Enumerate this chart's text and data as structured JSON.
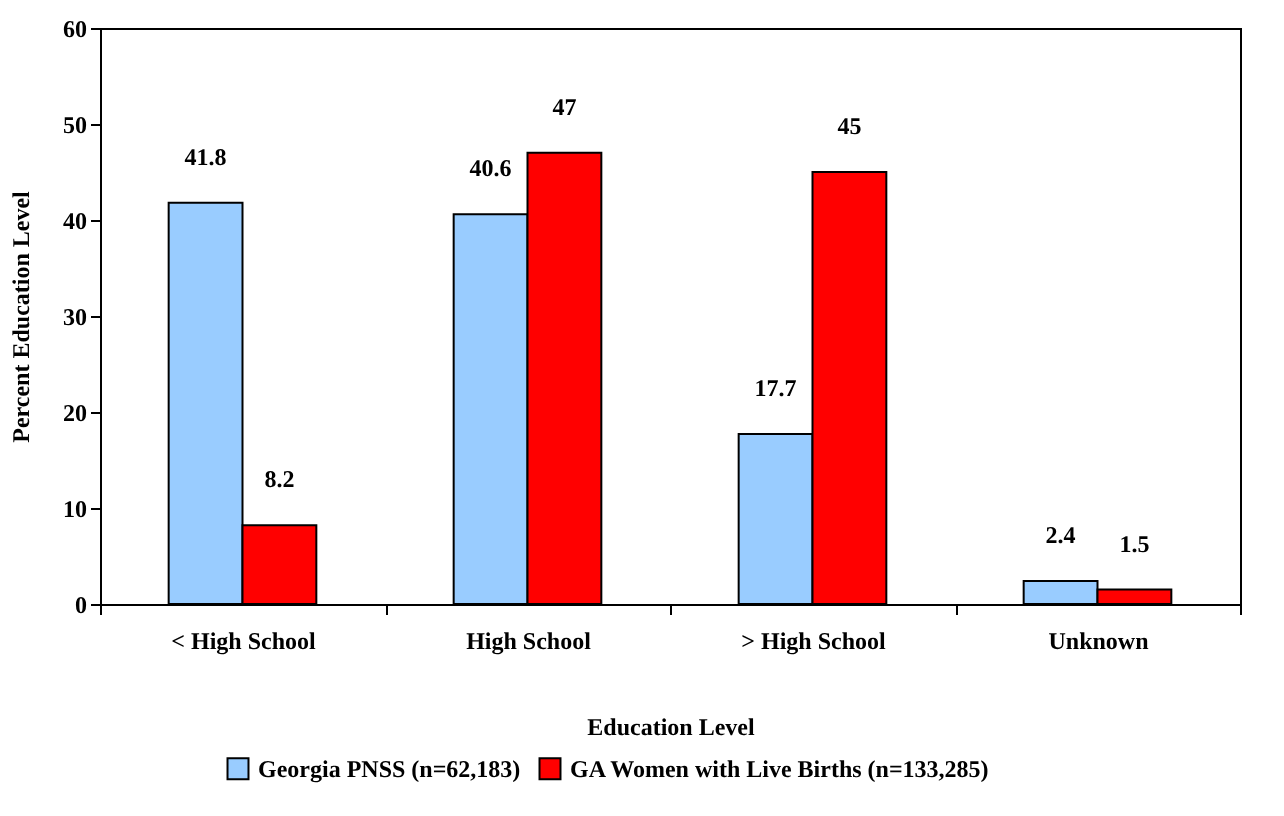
{
  "chart_data": {
    "type": "bar",
    "xlabel": "Education Level",
    "ylabel": "Percent Education Level",
    "categories": [
      "< High School",
      "High School",
      "> High School",
      "Unknown"
    ],
    "series": [
      {
        "name": "Georgia PNSS (n=62,183)",
        "color": "#99ccff",
        "values": [
          41.8,
          40.6,
          17.7,
          2.4
        ]
      },
      {
        "name": "GA Women with Live Births (n=133,285)",
        "color": "#ff0000",
        "values": [
          8.2,
          47,
          45,
          1.5
        ]
      }
    ],
    "ylim": [
      0,
      60
    ],
    "yticks": [
      0,
      10,
      20,
      30,
      40,
      50,
      60
    ],
    "legend": "bottom",
    "data_labels": true
  }
}
